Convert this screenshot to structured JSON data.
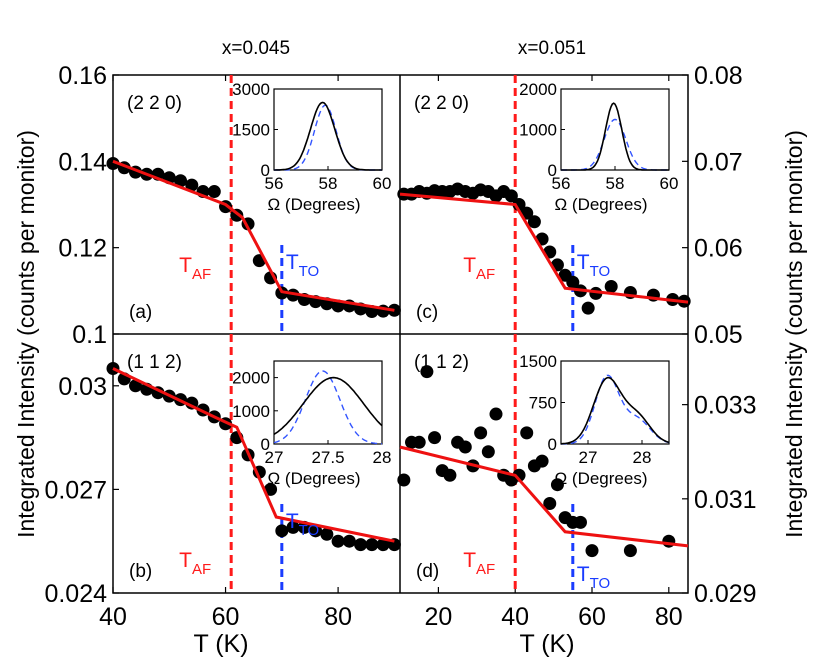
{
  "chart_data": {
    "type": "scatter",
    "y_axis_label": "Integrated Intensity (counts per monitor)",
    "x_axis_label": "T (K)",
    "columns": [
      {
        "title": "x=0.045",
        "x_ticks": [
          "40",
          "60",
          "80"
        ],
        "xlim": [
          40,
          91
        ]
      },
      {
        "title": "x=0.051",
        "x_ticks": [
          "20",
          "40",
          "60",
          "80"
        ],
        "xlim": [
          10,
          85
        ]
      }
    ],
    "transition_labels": {
      "af_main": "T",
      "af_sub": "AF",
      "to_main": "T",
      "to_sub": "TO"
    },
    "colors": {
      "af": "#ff1a1a",
      "to": "#1a3cff",
      "fit": "#ee1111",
      "points": "#000000",
      "inset_dashed": "#3355ff"
    },
    "panels": [
      {
        "id": "a",
        "label": "(a)",
        "reflection": "(2 2 0)",
        "col": 0,
        "row": 0,
        "ylim": [
          0.1,
          0.16
        ],
        "y_ticks": [
          "0.16",
          "0.14",
          "0.12",
          "0.1"
        ],
        "y_tick_values": [
          0.16,
          0.14,
          0.12,
          0.1
        ],
        "y_tick_side": "left",
        "T_AF": 61,
        "T_TO": 70,
        "points": [
          [
            40,
            0.1395
          ],
          [
            42,
            0.1385
          ],
          [
            44,
            0.1375
          ],
          [
            46,
            0.137
          ],
          [
            48,
            0.137
          ],
          [
            50,
            0.1362
          ],
          [
            52,
            0.1355
          ],
          [
            54,
            0.1345
          ],
          [
            56,
            0.133
          ],
          [
            58,
            0.133
          ],
          [
            60,
            0.1295
          ],
          [
            62,
            0.1275
          ],
          [
            64,
            0.1255
          ],
          [
            66,
            0.117
          ],
          [
            68,
            0.113
          ],
          [
            70,
            0.1095
          ],
          [
            72,
            0.109
          ],
          [
            74,
            0.108
          ],
          [
            76,
            0.1075
          ],
          [
            78,
            0.107
          ],
          [
            80,
            0.1065
          ],
          [
            82,
            0.1065
          ],
          [
            84,
            0.1058
          ],
          [
            86,
            0.1052
          ],
          [
            88,
            0.1053
          ],
          [
            90,
            0.1055
          ]
        ],
        "fit": [
          [
            40,
            0.14
          ],
          [
            60,
            0.13
          ],
          [
            63,
            0.127
          ],
          [
            70,
            0.1098
          ],
          [
            90,
            0.1055
          ]
        ],
        "inset": {
          "xlim": [
            56,
            60
          ],
          "ylim": [
            0,
            3000
          ],
          "x_ticks": [
            56,
            58,
            60
          ],
          "x_tick_labels": [
            "56",
            "58",
            "60"
          ],
          "y_ticks": [
            0,
            1500,
            3000
          ],
          "y_tick_labels": [
            "0",
            "1500",
            "3000"
          ],
          "xlabel": "Ω (Degrees)",
          "solid": {
            "center": 57.8,
            "width": 0.45,
            "peak": 2500
          },
          "dashed": {
            "center": 57.9,
            "width": 0.4,
            "peak": 2400
          }
        }
      },
      {
        "id": "b",
        "label": "(b)",
        "reflection": "(1 1 2)",
        "col": 0,
        "row": 1,
        "ylim": [
          0.024,
          0.0315
        ],
        "y_ticks": [
          "0.03",
          "0.027",
          "0.024"
        ],
        "y_tick_values": [
          0.03,
          0.027,
          0.024
        ],
        "y_tick_side": "left",
        "T_AF": 61,
        "T_TO": 70,
        "points": [
          [
            40,
            0.0305
          ],
          [
            42,
            0.0302
          ],
          [
            44,
            0.03
          ],
          [
            46,
            0.0299
          ],
          [
            48,
            0.0298
          ],
          [
            50,
            0.0297
          ],
          [
            52,
            0.0296
          ],
          [
            54,
            0.0295
          ],
          [
            56,
            0.0293
          ],
          [
            58,
            0.0291
          ],
          [
            60,
            0.0289
          ],
          [
            62,
            0.0285
          ],
          [
            64,
            0.028
          ],
          [
            66,
            0.0275
          ],
          [
            68,
            0.027
          ],
          [
            70,
            0.0258
          ],
          [
            72,
            0.0259
          ],
          [
            74,
            0.0259
          ],
          [
            76,
            0.0258
          ],
          [
            78,
            0.0257
          ],
          [
            80,
            0.0255
          ],
          [
            82,
            0.0255
          ],
          [
            84,
            0.0254
          ],
          [
            86,
            0.0254
          ],
          [
            88,
            0.0254
          ],
          [
            90,
            0.0254
          ]
        ],
        "fit": [
          [
            40,
            0.0305
          ],
          [
            58,
            0.0291
          ],
          [
            62,
            0.0288
          ],
          [
            69,
            0.0262
          ],
          [
            90,
            0.0255
          ]
        ],
        "inset": {
          "xlim": [
            27,
            28
          ],
          "ylim": [
            0,
            2500
          ],
          "x_ticks": [
            27,
            27.5,
            28
          ],
          "x_tick_labels": [
            "27",
            "27.5",
            "28"
          ],
          "y_ticks": [
            0,
            1000,
            2000
          ],
          "y_tick_labels": [
            "0",
            "1000",
            "2000"
          ],
          "xlabel": "Ω (Degrees)",
          "solid": {
            "center": 27.55,
            "width": 0.28,
            "peak": 2000
          },
          "dashed": {
            "center": 27.45,
            "width": 0.16,
            "peak": 2200
          }
        }
      },
      {
        "id": "c",
        "label": "(c)",
        "reflection": "(2 2 0)",
        "col": 1,
        "row": 0,
        "ylim": [
          0.05,
          0.08
        ],
        "y_ticks": [
          "0.08",
          "0.07",
          "0.06",
          "0.05"
        ],
        "y_tick_values": [
          0.08,
          0.07,
          0.06,
          0.05
        ],
        "y_tick_side": "right",
        "T_AF": 40,
        "T_TO": 55,
        "points": [
          [
            11,
            0.0662
          ],
          [
            13,
            0.0662
          ],
          [
            15,
            0.0665
          ],
          [
            17,
            0.0663
          ],
          [
            19,
            0.0666
          ],
          [
            21,
            0.0665
          ],
          [
            23,
            0.0665
          ],
          [
            25,
            0.0668
          ],
          [
            27,
            0.0665
          ],
          [
            29,
            0.0663
          ],
          [
            31,
            0.0667
          ],
          [
            33,
            0.0665
          ],
          [
            35,
            0.066
          ],
          [
            37,
            0.0665
          ],
          [
            39,
            0.066
          ],
          [
            41,
            0.065
          ],
          [
            43,
            0.064
          ],
          [
            45,
            0.063
          ],
          [
            47,
            0.061
          ],
          [
            49,
            0.0595
          ],
          [
            51,
            0.058
          ],
          [
            53,
            0.0568
          ],
          [
            55,
            0.056
          ],
          [
            57,
            0.055
          ],
          [
            59,
            0.053
          ],
          [
            61,
            0.0547
          ],
          [
            65,
            0.0555
          ],
          [
            70,
            0.0548
          ],
          [
            76,
            0.0545
          ],
          [
            81,
            0.054
          ],
          [
            84,
            0.0538
          ]
        ],
        "fit": [
          [
            10,
            0.0662
          ],
          [
            40,
            0.065
          ],
          [
            53,
            0.0553
          ],
          [
            85,
            0.0537
          ]
        ],
        "inset": {
          "xlim": [
            56,
            60
          ],
          "ylim": [
            0,
            2000
          ],
          "x_ticks": [
            56,
            58,
            60
          ],
          "x_tick_labels": [
            "56",
            "58",
            "60"
          ],
          "y_ticks": [
            0,
            1000,
            2000
          ],
          "y_tick_labels": [
            "0",
            "1000",
            "2000"
          ],
          "xlabel": "Ω (Degrees)",
          "solid": {
            "center": 57.95,
            "width": 0.3,
            "peak": 1650
          },
          "dashed": {
            "center": 58.0,
            "width": 0.4,
            "peak": 1250
          }
        }
      },
      {
        "id": "d",
        "label": "(d)",
        "reflection": "(1 1 2)",
        "col": 1,
        "row": 1,
        "ylim": [
          0.029,
          0.0345
        ],
        "y_ticks": [
          "0.033",
          "0.031",
          "0.029"
        ],
        "y_tick_values": [
          0.033,
          0.031,
          0.029
        ],
        "y_tick_side": "right",
        "T_AF": 40,
        "T_TO": 55,
        "points": [
          [
            11,
            0.0314
          ],
          [
            13,
            0.0322
          ],
          [
            15,
            0.0322
          ],
          [
            17,
            0.0337
          ],
          [
            19,
            0.0323
          ],
          [
            21,
            0.0316
          ],
          [
            23,
            0.0315
          ],
          [
            25,
            0.0322
          ],
          [
            27,
            0.0321
          ],
          [
            29,
            0.0317
          ],
          [
            31,
            0.0324
          ],
          [
            33,
            0.032
          ],
          [
            35,
            0.0328
          ],
          [
            37,
            0.0315
          ],
          [
            39,
            0.0314
          ],
          [
            41,
            0.0315
          ],
          [
            43,
            0.0324
          ],
          [
            45,
            0.0317
          ],
          [
            47,
            0.0318
          ],
          [
            49,
            0.0309
          ],
          [
            51,
            0.0313
          ],
          [
            53,
            0.0306
          ],
          [
            55,
            0.0305
          ],
          [
            57,
            0.0305
          ],
          [
            60,
            0.0299
          ],
          [
            70,
            0.0299
          ],
          [
            80,
            0.0301
          ]
        ],
        "fit": [
          [
            10,
            0.0321
          ],
          [
            40,
            0.0315
          ],
          [
            53,
            0.0303
          ],
          [
            85,
            0.03
          ]
        ],
        "inset": {
          "xlim": [
            26.5,
            28.5
          ],
          "ylim": [
            0,
            1500
          ],
          "x_ticks": [
            27,
            28
          ],
          "x_tick_labels": [
            "27",
            "28"
          ],
          "y_ticks": [
            0,
            750,
            1500
          ],
          "y_tick_labels": [
            "0",
            "750",
            "1500"
          ],
          "xlabel": "Ω (Degrees)",
          "solid": {
            "center": 27.35,
            "width": 0.25,
            "peak": 1150,
            "shoulder": {
              "center": 27.9,
              "width": 0.25,
              "peak": 500
            }
          },
          "dashed": {
            "center": 27.35,
            "width": 0.22,
            "peak": 1200,
            "shoulder": {
              "center": 27.9,
              "width": 0.25,
              "peak": 450
            }
          }
        }
      }
    ]
  }
}
